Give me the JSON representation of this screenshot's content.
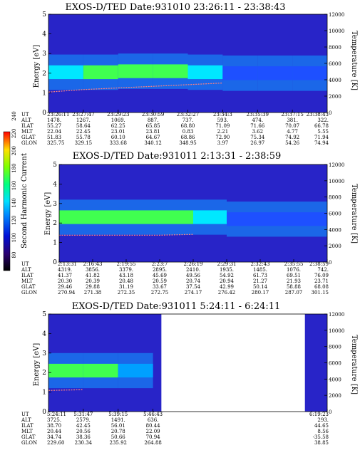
{
  "colorbar": {
    "label": "Second Harmonic Current",
    "ticks": [
      "240",
      "220",
      "200",
      "180",
      "160",
      "140",
      "120",
      "100",
      "80"
    ]
  },
  "chart_data": [
    {
      "type": "heatmap",
      "title": "EXOS-D/TED  Date:931010  23:26:11 - 23:38:43",
      "ylabel": "Energy [eV]",
      "y2label": "Temperature [K]",
      "ylim": [
        0,
        5
      ],
      "y2lim": [
        0,
        12000
      ],
      "yticks": [
        "0",
        "1",
        "2",
        "3",
        "4",
        "5"
      ],
      "y2ticks": [
        "0",
        "2000",
        "4000",
        "6000",
        "8000",
        "10000",
        "12000"
      ],
      "table_labels": [
        "UT",
        "ALT",
        "ILAT",
        "MLT",
        "GLAT",
        "GLON"
      ],
      "table": [
        [
          "23:26:11",
          "1478.",
          "55.27",
          "22.04",
          "51.83",
          "325.75"
        ],
        [
          "23:27:47",
          "1267.",
          "58.64",
          "22.45",
          "55.78",
          "329.15"
        ],
        [
          "23:29:23",
          "1069.",
          "62.25",
          "23.01",
          "60.10",
          "333.68"
        ],
        [
          "23:30:59",
          "887.",
          "65.85",
          "23.81",
          "64.67",
          "340.12"
        ],
        [
          "23:32:27",
          "737.",
          "68.80",
          "0.83",
          "68.86",
          "348.95"
        ],
        [
          "23:34:3",
          "593.",
          "71.09",
          "2.21",
          "72.90",
          "3.97"
        ],
        [
          "23:35:39",
          "474.",
          "71.66",
          "3.62",
          "75.34",
          "26.97"
        ],
        [
          "23:37:15",
          "381.",
          "70.07",
          "4.77",
          "74.92",
          "54.26"
        ],
        [
          "23:38:43",
          "322.",
          "66.78",
          "5.55",
          "71.94",
          "74.94"
        ]
      ],
      "band_energy": [
        2.05,
        2.05,
        2.1,
        2.1,
        2.05,
        2.0,
        2.0,
        2.0,
        2.0
      ],
      "band_intensity": [
        0.7,
        0.85,
        0.85,
        0.9,
        0.75,
        0.4,
        0.3,
        0.3,
        0.3
      ],
      "temperature": [
        2500,
        2800,
        3000,
        3200,
        3400,
        3600,
        null,
        null,
        null
      ]
    },
    {
      "type": "heatmap",
      "title": "EXOS-D/TED   Date:931011   2:13:31 - 2:38:59",
      "ylabel": "Energy [eV]",
      "y2label": "Temperature [K]",
      "ylim": [
        0,
        5
      ],
      "y2lim": [
        0,
        12000
      ],
      "yticks": [
        "0",
        "1",
        "2",
        "3",
        "4",
        "5"
      ],
      "y2ticks": [
        "0",
        "2000",
        "4000",
        "6000",
        "8000",
        "10000",
        "12000"
      ],
      "table_labels": [
        "UT",
        "ALT",
        "ILAT",
        "MLT",
        "GLAT",
        "GLON"
      ],
      "table": [
        [
          "2:13:31",
          "4319.",
          "41.37",
          "20.30",
          "29.46",
          "270.94"
        ],
        [
          "2:16:43",
          "3856.",
          "41.82",
          "20.39",
          "29.88",
          "271.38"
        ],
        [
          "2:19:55",
          "3379.",
          "43.18",
          "20.48",
          "31.19",
          "272.35"
        ],
        [
          "2:23:7",
          "2895.",
          "45.69",
          "20.59",
          "33.67",
          "272.75"
        ],
        [
          "2:26:19",
          "2410.",
          "49.56",
          "20.74",
          "37.54",
          "274.17"
        ],
        [
          "2:29:31",
          "1935.",
          "54.92",
          "20.94",
          "42.99",
          "276.42"
        ],
        [
          "2:32:43",
          "1485.",
          "61.73",
          "21.27",
          "50.14",
          "280.17"
        ],
        [
          "2:35:55",
          "1076.",
          "69.51",
          "21.93",
          "58.88",
          "287.07"
        ],
        [
          "2:38:59",
          "742.",
          "76.09",
          "23.71",
          "68.08",
          "301.15"
        ]
      ],
      "band_energy": [
        2.3,
        2.3,
        2.3,
        2.3,
        2.3,
        2.2,
        2.2,
        2.2,
        2.2
      ],
      "band_intensity": [
        0.85,
        0.9,
        0.9,
        0.9,
        0.8,
        0.3,
        0.2,
        0.2,
        0.3
      ],
      "temperature": [
        3300,
        3300,
        3300,
        3300,
        3400,
        null,
        null,
        null,
        null
      ]
    },
    {
      "type": "heatmap",
      "title": "EXOS-D/TED   Date:931011   5:24:11 - 6:24:11",
      "ylabel": "Energy [eV]",
      "y2label": "Temperature [K]",
      "ylim": [
        0,
        5
      ],
      "y2lim": [
        0,
        12000
      ],
      "yticks": [
        "0",
        "1",
        "2",
        "3",
        "4",
        "5"
      ],
      "y2ticks": [
        "0",
        "2000",
        "4000",
        "6000",
        "8000",
        "10000",
        "12000"
      ],
      "table_labels": [
        "UT",
        "ALT",
        "ILAT",
        "MLT",
        "GLAT",
        "GLON"
      ],
      "table": [
        [
          "5:24:11",
          "3725.",
          "38.70",
          "20.44",
          "34.74",
          "229.60"
        ],
        [
          "5:31:47",
          "2579.",
          "42.45",
          "20.56",
          "38.36",
          "230.34"
        ],
        [
          "5:39:15",
          "1491.",
          "56.01",
          "20.78",
          "50.66",
          "235.92"
        ],
        [
          "5:46:43",
          "636.",
          "80.44",
          "22.09",
          "70.94",
          "264.88"
        ],
        [
          "",
          "",
          "",
          "",
          "",
          ""
        ],
        [
          "",
          "",
          "",
          "",
          "",
          ""
        ],
        [
          "",
          "",
          "",
          "",
          "",
          ""
        ],
        [
          "",
          "",
          "",
          "",
          "",
          ""
        ],
        [
          "6:19:23",
          "293.",
          "44.65",
          "8.56",
          "-35.58",
          "38.85"
        ]
      ],
      "band_energy": [
        2.1,
        2.1,
        2.1,
        null,
        null,
        null,
        null,
        null,
        2.1
      ],
      "band_intensity": [
        0.85,
        0.85,
        0.6,
        null,
        null,
        null,
        null,
        null,
        0.6
      ],
      "temperature": [
        2600,
        2700,
        null,
        null,
        null,
        null,
        null,
        null,
        null
      ]
    }
  ]
}
